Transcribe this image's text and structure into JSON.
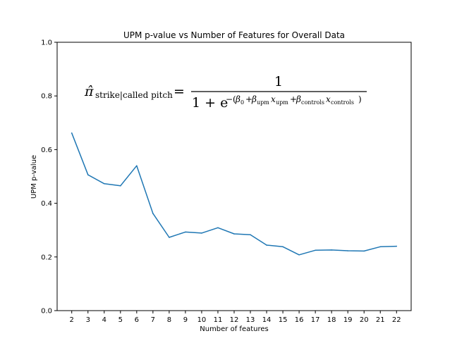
{
  "chart_data": {
    "type": "line",
    "title": "UPM p-value vs Number of Features for Overall Data",
    "xlabel": "Number of features",
    "ylabel": "UPM p-value",
    "x": [
      2,
      3,
      4,
      5,
      6,
      7,
      8,
      9,
      10,
      11,
      12,
      13,
      14,
      15,
      16,
      17,
      18,
      19,
      20,
      21,
      22
    ],
    "series": [
      {
        "values": [
          0.662,
          0.506,
          0.473,
          0.465,
          0.54,
          0.362,
          0.273,
          0.293,
          0.289,
          0.309,
          0.286,
          0.283,
          0.244,
          0.238,
          0.208,
          0.225,
          0.226,
          0.223,
          0.222,
          0.238,
          0.24
        ],
        "color": "#1f77b4"
      }
    ],
    "xticks": [
      "2",
      "3",
      "4",
      "5",
      "6",
      "7",
      "8",
      "9",
      "10",
      "11",
      "12",
      "13",
      "14",
      "15",
      "16",
      "17",
      "18",
      "19",
      "20",
      "21",
      "22"
    ],
    "yticks": [
      "0.0",
      "0.2",
      "0.4",
      "0.6",
      "0.8",
      "1.0"
    ],
    "ylim": [
      0.0,
      1.0
    ],
    "grid": false,
    "annotation": {
      "lhs_symbol": "π̂",
      "lhs_subscript": "strike|called pitch",
      "equals": "=",
      "numerator": "1",
      "denominator_base": "1 + e",
      "exp_minus": "−(",
      "beta0": "β",
      "beta0_sub": "0",
      "plus": "+",
      "beta_upm": "β",
      "beta_upm_sub": "upm",
      "x_upm": "x",
      "x_upm_sub": "upm",
      "beta_controls": "β",
      "beta_controls_sub": "controls",
      "x_controls": "x",
      "x_controls_sub": "controls",
      "close": ")"
    }
  }
}
